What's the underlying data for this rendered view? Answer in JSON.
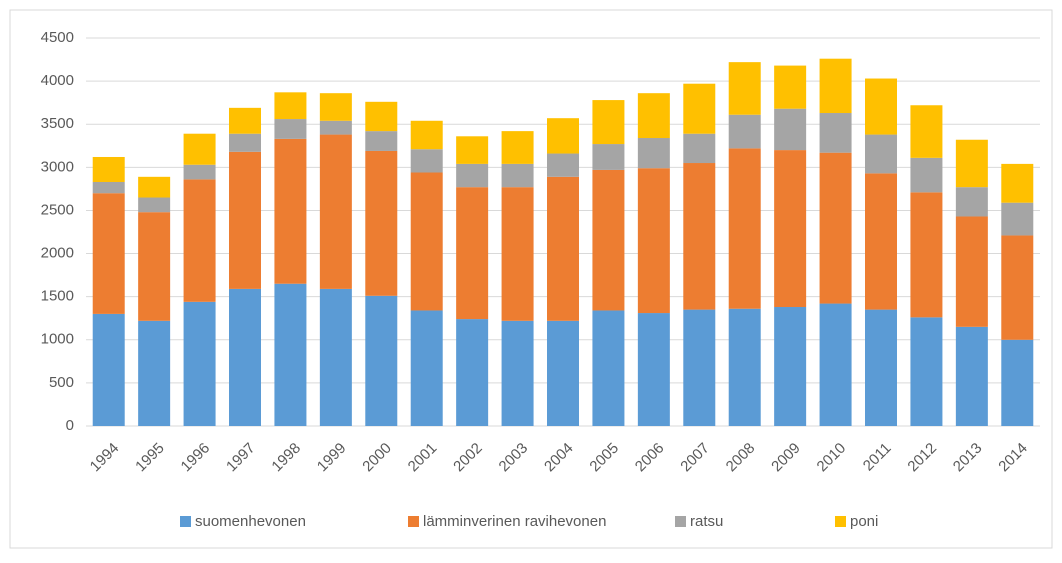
{
  "chart_data": {
    "type": "bar",
    "stacked": true,
    "legend": "bottom",
    "grid": true,
    "categories": [
      "1994",
      "1995",
      "1996",
      "1997",
      "1998",
      "1999",
      "2000",
      "2001",
      "2002",
      "2003",
      "2004",
      "2005",
      "2006",
      "2007",
      "2008",
      "2009",
      "2010",
      "2011",
      "2012",
      "2013",
      "2014"
    ],
    "series": [
      {
        "name": "suomenhevonen",
        "color": "#5b9bd5",
        "values": [
          1300,
          1220,
          1440,
          1590,
          1650,
          1590,
          1510,
          1340,
          1240,
          1220,
          1220,
          1340,
          1310,
          1350,
          1360,
          1380,
          1420,
          1350,
          1260,
          1150,
          1000
        ]
      },
      {
        "name": "lämminverinen ravihevonen",
        "color": "#ed7d31",
        "values": [
          1400,
          1260,
          1420,
          1590,
          1680,
          1790,
          1680,
          1600,
          1530,
          1550,
          1670,
          1630,
          1680,
          1700,
          1860,
          1820,
          1750,
          1580,
          1450,
          1280,
          1210
        ]
      },
      {
        "name": "ratsu",
        "color": "#a5a5a5",
        "values": [
          130,
          170,
          170,
          210,
          230,
          160,
          230,
          270,
          270,
          270,
          270,
          300,
          350,
          340,
          390,
          480,
          460,
          450,
          400,
          340,
          380
        ]
      },
      {
        "name": "poni",
        "color": "#ffc000",
        "values": [
          290,
          240,
          360,
          300,
          310,
          320,
          340,
          330,
          320,
          380,
          410,
          510,
          520,
          580,
          610,
          500,
          630,
          650,
          610,
          550,
          450
        ]
      }
    ],
    "ylim": [
      0,
      4500
    ],
    "yticks": [
      0,
      500,
      1000,
      1500,
      2000,
      2500,
      3000,
      3500,
      4000,
      4500
    ]
  }
}
